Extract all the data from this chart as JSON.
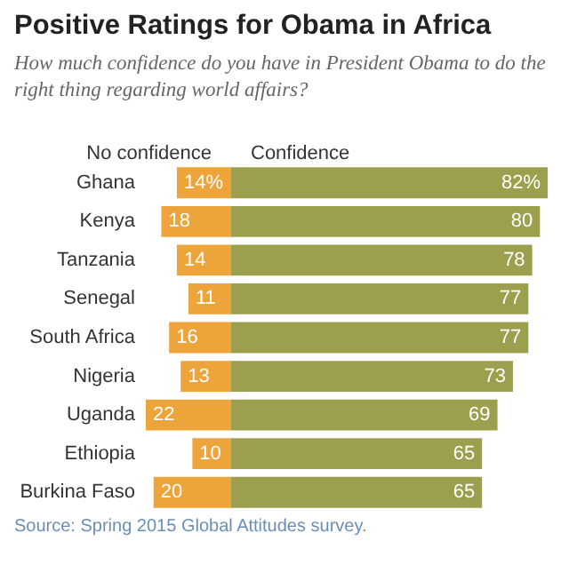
{
  "chart_data": [
    {
      "type": "other",
      "title": "Positive Ratings for Obama in Africa",
      "subtitle": "How much confidence do you have in President Obama to do the right thing regarding world affairs?",
      "annotations": [
        "Source: Spring 2015 Global Attitudes survey."
      ]
    },
    {
      "type": "bar",
      "orientation": "horizontal",
      "title": "No confidence",
      "categories": [
        "Ghana",
        "Kenya",
        "Tanzania",
        "Senegal",
        "South Africa",
        "Nigeria",
        "Uganda",
        "Ethiopia",
        "Burkina Faso"
      ],
      "values": [
        14,
        18,
        14,
        11,
        16,
        13,
        22,
        10,
        20
      ],
      "color": "#eda43a",
      "value_labels": [
        "14%",
        "18",
        "14",
        "11",
        "16",
        "13",
        "22",
        "10",
        "20"
      ],
      "xlim": [
        22,
        0
      ],
      "tick_labels": "y"
    },
    {
      "type": "bar",
      "orientation": "horizontal",
      "title": "Confidence",
      "categories": [
        null,
        null,
        null,
        null,
        null,
        null,
        null,
        null,
        null
      ],
      "values": [
        82,
        80,
        78,
        77,
        77,
        73,
        69,
        65,
        65
      ],
      "color": "#9c9f4e",
      "value_labels": [
        "82%",
        "80",
        "78",
        "77",
        "77",
        "73",
        "69",
        "65",
        "65"
      ],
      "xlim": [
        0,
        82
      ],
      "tick_labels": false
    }
  ]
}
